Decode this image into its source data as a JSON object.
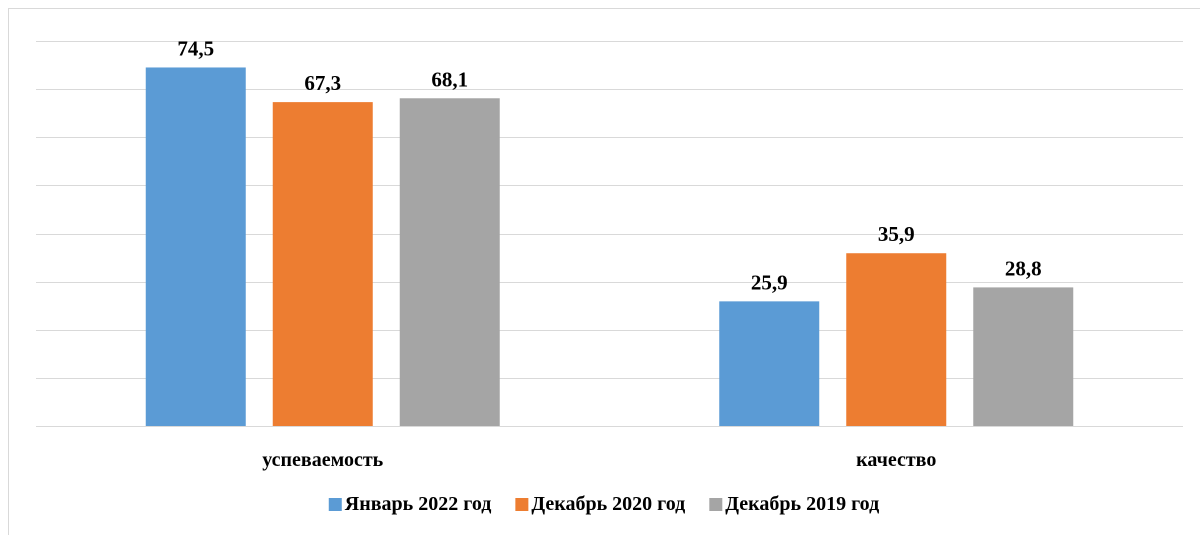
{
  "chart_data": {
    "type": "bar",
    "categories": [
      "успеваемость",
      "качество"
    ],
    "series": [
      {
        "name": "Январь 2022 год",
        "values": [
          74.5,
          25.9
        ],
        "labels": [
          "74,5",
          "25,9"
        ],
        "color": "#5B9BD5"
      },
      {
        "name": "Декабрь 2020 год",
        "values": [
          67.3,
          35.9
        ],
        "labels": [
          "67,3",
          "35,9"
        ],
        "color": "#ED7D31"
      },
      {
        "name": "Декабрь 2019 год",
        "values": [
          68.1,
          28.8
        ],
        "labels": [
          "68,1",
          "28,8"
        ],
        "color": "#A5A5A5"
      }
    ],
    "title": "",
    "xlabel": "",
    "ylabel": "",
    "ylim": [
      0,
      80
    ],
    "grid": true,
    "legend": "bottom",
    "gridline_color": "#d9d9d9"
  }
}
